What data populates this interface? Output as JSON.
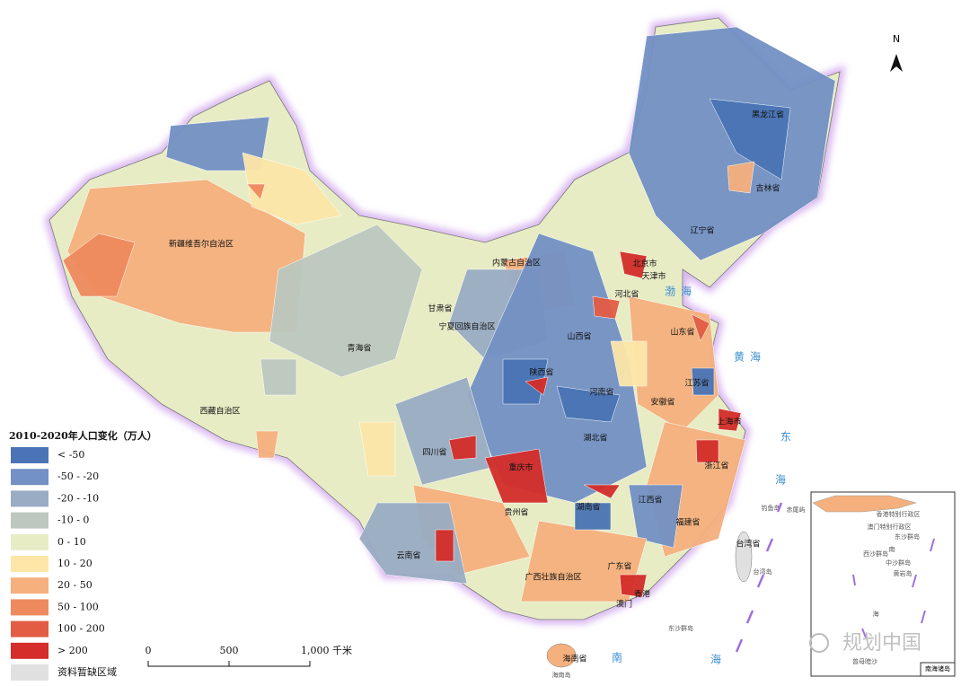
{
  "legend": {
    "title": "2010-2020年人口变化（万人）",
    "items": [
      {
        "label": "< -50",
        "color": "#4a74b5"
      },
      {
        "label": "-50 - -20",
        "color": "#7391c4"
      },
      {
        "label": "-20 - -10",
        "color": "#9aacc3"
      },
      {
        "label": "-10 - 0",
        "color": "#bcc8bf"
      },
      {
        "label": "0 - 10",
        "color": "#e7ecc5"
      },
      {
        "label": "10 - 20",
        "color": "#fde6a8"
      },
      {
        "label": "20 - 50",
        "color": "#f5b07e"
      },
      {
        "label": "50 - 100",
        "color": "#ef8a5e"
      },
      {
        "label": "100 - 200",
        "color": "#e35d45"
      },
      {
        "label": "> 200",
        "color": "#d42d2a"
      },
      {
        "label": "资料暂缺区域",
        "color": "#e0e0e0"
      }
    ]
  },
  "provinces": [
    "黑龙江省",
    "吉林省",
    "辽宁省",
    "北京市",
    "天津市",
    "河北省",
    "内蒙古自治区",
    "新疆维吾尔自治区",
    "甘肃省",
    "宁夏回族自治区",
    "山西省",
    "山东省",
    "青海省",
    "陕西省",
    "河南省",
    "江苏省",
    "安徽省",
    "上海市",
    "西藏自治区",
    "四川省",
    "重庆市",
    "湖北省",
    "浙江省",
    "贵州省",
    "湖南省",
    "江西省",
    "福建省",
    "台湾省",
    "云南省",
    "广西壮族自治区",
    "广东省",
    "香港",
    "澳门",
    "海南省"
  ],
  "seas": [
    "渤海",
    "黄海",
    "东",
    "海",
    "南",
    "海"
  ],
  "islands": [
    "台湾岛",
    "东沙群岛",
    "海南岛",
    "钓鱼岛",
    "赤尾屿"
  ],
  "inset": {
    "title": "南海诸岛",
    "labels": [
      "香港特别行政区",
      "澳门特别行政区",
      "东沙群岛",
      "西沙群岛",
      "中沙群岛",
      "黄岩岛",
      "南",
      "海",
      "曾母暗沙"
    ]
  },
  "scale_bar": [
    "0",
    "500",
    "1,000 千米"
  ],
  "north": "N",
  "watermark": "规划中国"
}
